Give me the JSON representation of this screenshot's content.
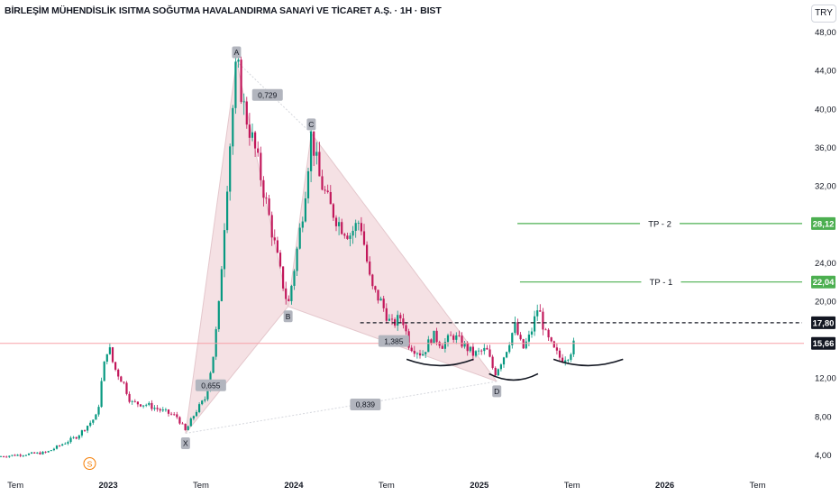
{
  "header": {
    "title": "BİRLEŞİM MÜHENDİSLİK ISITMA SOĞUTMA HAVALANDIRMA SANAYİ VE TİCARET A.Ş. · 1H · BIST",
    "currency": "TRY"
  },
  "colors": {
    "up": "#089981",
    "down": "#c2185b",
    "pattern_fill": "#f1d7db",
    "tp_line": "#4caf50",
    "current_price_line": "#f7a1a8",
    "badge_bg": "#b2b5be"
  },
  "chart_data": {
    "type": "candlestick",
    "title": "BİRLEŞİM MÜHENDİSLİK ISITMA SOĞUTMA HAVALANDIRMA SANAYİ VE TİCARET A.Ş. · 1H · BIST",
    "y_axis": {
      "ticks": [
        "48,00",
        "44,00",
        "40,00",
        "36,00",
        "32,00",
        "24,00",
        "20,00",
        "12,00",
        "8,00",
        "4,00"
      ],
      "range": [
        2.5,
        49.5
      ]
    },
    "x_axis": {
      "ticks": [
        "Tem",
        "2023",
        "Tem",
        "2024",
        "Tem",
        "2025",
        "Tem",
        "2026",
        "Tem"
      ],
      "range": [
        "2022-06",
        "2026-10"
      ]
    },
    "price_path": [
      [
        "2022-06",
        3.9
      ],
      [
        "2022-09",
        4.3
      ],
      [
        "2022-11",
        6.0
      ],
      [
        "2022-12-10",
        8.2
      ],
      [
        "2022-12-20",
        12.5
      ],
      [
        "2023-01-01",
        15.6
      ],
      [
        "2023-01-12",
        13.2
      ],
      [
        "2023-02-01",
        11.5
      ],
      [
        "2023-02-15",
        9.5
      ],
      [
        "2023-03-15",
        9.3
      ],
      [
        "2023-05-15",
        8.0
      ],
      [
        "2023-06-01",
        6.5
      ],
      [
        "2023-06-20",
        8.5
      ],
      [
        "2023-07-10",
        10.0
      ],
      [
        "2023-07-25",
        14.5
      ],
      [
        "2023-08-05",
        19.0
      ],
      [
        "2023-08-25",
        35.0
      ],
      [
        "2023-09-10",
        45.0
      ],
      [
        "2023-09-25",
        40.0
      ],
      [
        "2023-10-15",
        36.0
      ],
      [
        "2023-11-01",
        32.0
      ],
      [
        "2023-11-20",
        27.0
      ],
      [
        "2023-12-05",
        23.0
      ],
      [
        "2023-12-20",
        19.5
      ],
      [
        "2024-01-05",
        24.5
      ],
      [
        "2024-01-20",
        30.0
      ],
      [
        "2024-02-05",
        37.5
      ],
      [
        "2024-02-20",
        33.0
      ],
      [
        "2024-03-10",
        30.0
      ],
      [
        "2024-04-01",
        28.0
      ],
      [
        "2024-04-20",
        27.0
      ],
      [
        "2024-05-10",
        28.5
      ],
      [
        "2024-06-01",
        21.5
      ],
      [
        "2024-06-20",
        20.0
      ],
      [
        "2024-07-10",
        17.5
      ],
      [
        "2024-08-01",
        18.5
      ],
      [
        "2024-08-15",
        15.5
      ],
      [
        "2024-09-10",
        14.5
      ],
      [
        "2024-10-01",
        16.5
      ],
      [
        "2024-10-20",
        15.5
      ],
      [
        "2024-11-10",
        16.5
      ],
      [
        "2024-12-01",
        15.5
      ],
      [
        "2024-12-20",
        14.5
      ],
      [
        "2025-01-15",
        15.0
      ],
      [
        "2025-02-01",
        12.5
      ],
      [
        "2025-02-20",
        14.5
      ],
      [
        "2025-03-10",
        17.5
      ],
      [
        "2025-03-25",
        15.0
      ],
      [
        "2025-04-10",
        16.5
      ],
      [
        "2025-04-25",
        19.5
      ],
      [
        "2025-05-10",
        16.5
      ],
      [
        "2025-05-25",
        15.0
      ],
      [
        "2025-06-10",
        14.0
      ],
      [
        "2025-06-25",
        14.5
      ],
      [
        "2025-07-05",
        15.6
      ]
    ],
    "harmonic_pattern": {
      "points": [
        {
          "label": "X",
          "date": "2023-06-01",
          "price": 6.3
        },
        {
          "label": "A",
          "date": "2023-09-10",
          "price": 45.0
        },
        {
          "label": "B",
          "date": "2023-12-20",
          "price": 19.5
        },
        {
          "label": "C",
          "date": "2024-02-05",
          "price": 37.5
        },
        {
          "label": "D",
          "date": "2025-02-05",
          "price": 11.7
        }
      ],
      "ratios": [
        {
          "value": "0,729",
          "date": "2023-11-10",
          "price": 41.5
        },
        {
          "value": "0,655",
          "date": "2023-07-20",
          "price": 11.3
        },
        {
          "value": "1,385",
          "date": "2024-07-15",
          "price": 15.9
        },
        {
          "value": "0,839",
          "date": "2024-05-20",
          "price": 9.3
        }
      ]
    },
    "horizontal_lines": [
      {
        "label": "TP - 2",
        "price": 28.12,
        "price_label": "28,12",
        "from": "2025-03-15",
        "style": "solid"
      },
      {
        "label": "TP - 1",
        "price": 22.04,
        "price_label": "22,04",
        "from": "2025-03-20",
        "style": "solid"
      },
      {
        "label": "",
        "price": 17.8,
        "price_label": "17,80",
        "from": "2024-05-10",
        "style": "dashed"
      }
    ],
    "current_price": {
      "price": 15.66,
      "label": "15,66"
    },
    "arcs": [
      {
        "from": "2024-08-10",
        "to": "2024-12-20",
        "price": 14.0
      },
      {
        "from": "2025-01-20",
        "to": "2025-04-25",
        "price": 12.5
      },
      {
        "from": "2025-05-25",
        "to": "2025-10-10",
        "price": 14.0
      }
    ],
    "event_marker": {
      "label": "S",
      "date": "2022-11-25"
    }
  }
}
